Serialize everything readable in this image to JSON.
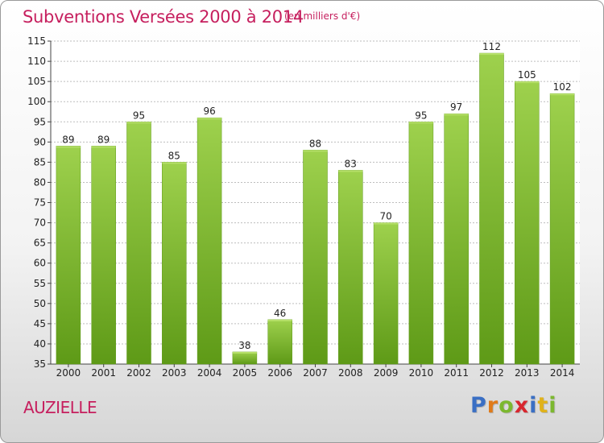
{
  "header": {
    "title": "Subventions Versées 2000 à 2014",
    "subtitle": "(en milliers d'€)"
  },
  "footer": {
    "place": "AUZIELLE",
    "logo_text": "Proxiti",
    "logo_letters": [
      {
        "ch": "P",
        "color": "#3a6fc4"
      },
      {
        "ch": "r",
        "color": "#e07b1a"
      },
      {
        "ch": "o",
        "color": "#7cb82f"
      },
      {
        "ch": "x",
        "color": "#d8262e"
      },
      {
        "ch": "i",
        "color": "#3a6fc4"
      },
      {
        "ch": "t",
        "color": "#e0b21a"
      },
      {
        "ch": "i",
        "color": "#7cb82f"
      }
    ]
  },
  "chart_data": {
    "type": "bar",
    "title": "Subventions Versées 2000 à 2014",
    "subtitle": "(en milliers d'€)",
    "categories": [
      "2000",
      "2001",
      "2002",
      "2003",
      "2004",
      "2005",
      "2006",
      "2007",
      "2008",
      "2009",
      "2010",
      "2011",
      "2012",
      "2013",
      "2014"
    ],
    "values": [
      89,
      89,
      95,
      85,
      96,
      38,
      46,
      88,
      83,
      70,
      95,
      97,
      112,
      105,
      102
    ],
    "ylim": [
      35,
      115
    ],
    "yticks": [
      35,
      40,
      45,
      50,
      55,
      60,
      65,
      70,
      75,
      80,
      85,
      90,
      95,
      100,
      105,
      110,
      115
    ],
    "grid": true,
    "bar_color": "#7cb82f",
    "bar_color_light": "#9ed14d",
    "bar_color_dark": "#5e9a17"
  }
}
